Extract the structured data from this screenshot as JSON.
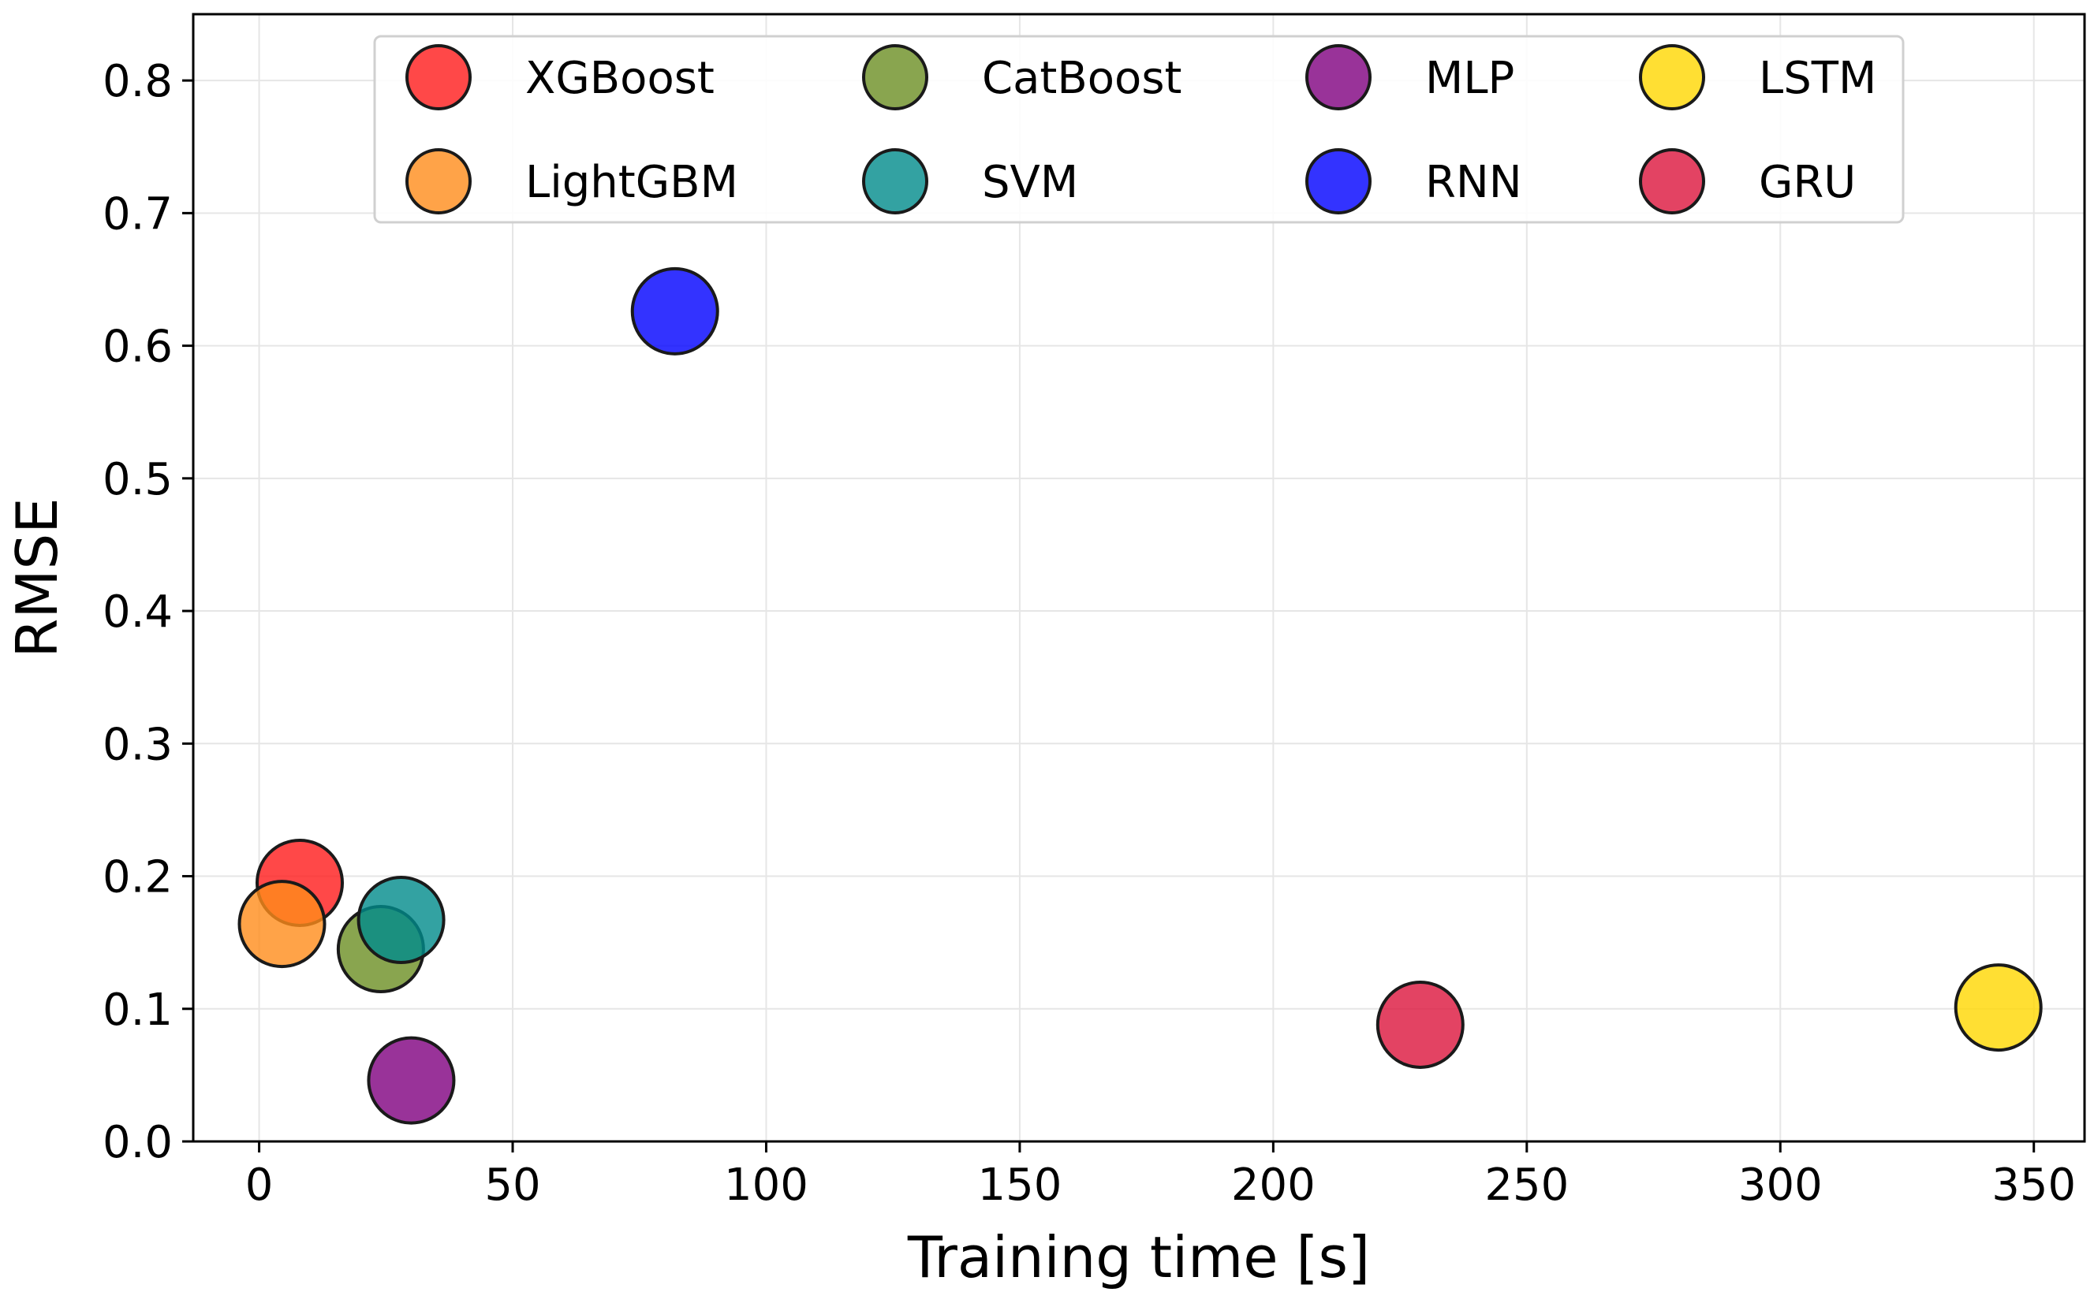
{
  "chart_data": {
    "type": "scatter",
    "title": "",
    "xlabel": "Training time [s]",
    "ylabel": "RMSE",
    "xlim": [
      -13,
      360
    ],
    "ylim": [
      0,
      0.85
    ],
    "xticks": [
      0,
      50,
      100,
      150,
      200,
      250,
      300,
      350
    ],
    "xtick_labels": [
      "0",
      "50",
      "100",
      "150",
      "200",
      "250",
      "300",
      "350"
    ],
    "yticks": [
      0,
      0.1,
      0.2,
      0.3,
      0.4,
      0.5,
      0.6,
      0.7,
      0.8
    ],
    "ytick_labels": [
      "0.0",
      "0.1",
      "0.2",
      "0.3",
      "0.4",
      "0.5",
      "0.6",
      "0.7",
      "0.8"
    ],
    "grid": true,
    "legend_position": "top-center",
    "legend_columns": 4,
    "series": [
      {
        "name": "XGBoost",
        "x": 8,
        "y": 0.195,
        "color": "#ff1a1a"
      },
      {
        "name": "LightGBM",
        "x": 4.5,
        "y": 0.164,
        "color": "#ff8c1a"
      },
      {
        "name": "CatBoost",
        "x": 24,
        "y": 0.145,
        "color": "#6b8e23"
      },
      {
        "name": "SVM",
        "x": 28,
        "y": 0.167,
        "color": "#008b8b"
      },
      {
        "name": "MLP",
        "x": 30,
        "y": 0.046,
        "color": "#800080"
      },
      {
        "name": "RNN",
        "x": 82,
        "y": 0.626,
        "color": "#0000ff"
      },
      {
        "name": "LSTM",
        "x": 343,
        "y": 0.101,
        "color": "#ffd700"
      },
      {
        "name": "GRU",
        "x": 229,
        "y": 0.088,
        "color": "#dc143c"
      }
    ],
    "legend_order": [
      "XGBoost",
      "CatBoost",
      "MLP",
      "LSTM",
      "LightGBM",
      "SVM",
      "RNN",
      "GRU"
    ]
  }
}
